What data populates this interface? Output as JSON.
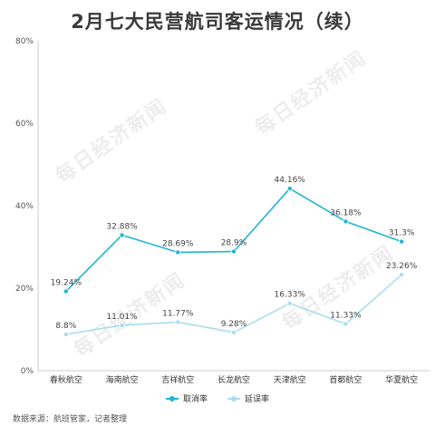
{
  "title": "2月七大民营航司客运情况（续）",
  "source": "数据来源：航班管家，记者整理",
  "watermark": "每日经济新闻",
  "colors": {
    "cancel": "#1fb5d3",
    "delay": "#a9dcef",
    "axis": "#cccccc"
  },
  "chart_data": {
    "type": "line",
    "title": "2月七大民营航司客运情况（续）",
    "categories": [
      "春秋航空",
      "海南航空",
      "吉祥航空",
      "长龙航空",
      "天津航空",
      "首都航空",
      "华夏航空"
    ],
    "yticks": [
      "0%",
      "20%",
      "40%",
      "60%",
      "80%"
    ],
    "ylim": [
      0,
      80
    ],
    "grid": false,
    "legend_position": "bottom",
    "series": [
      {
        "name": "取消率",
        "values": [
          19.24,
          32.88,
          28.69,
          28.9,
          44.16,
          36.18,
          31.3
        ],
        "labels": [
          "19.24%",
          "32.88%",
          "28.69%",
          "28.9%",
          "44.16%",
          "36.18%",
          "31.3%"
        ]
      },
      {
        "name": "延误率",
        "values": [
          8.8,
          11.01,
          11.77,
          9.28,
          16.33,
          11.33,
          23.26
        ],
        "labels": [
          "8.8%",
          "11.01%",
          "11.77%",
          "9.28%",
          "16.33%",
          "11.33%",
          "23.26%"
        ]
      }
    ]
  }
}
